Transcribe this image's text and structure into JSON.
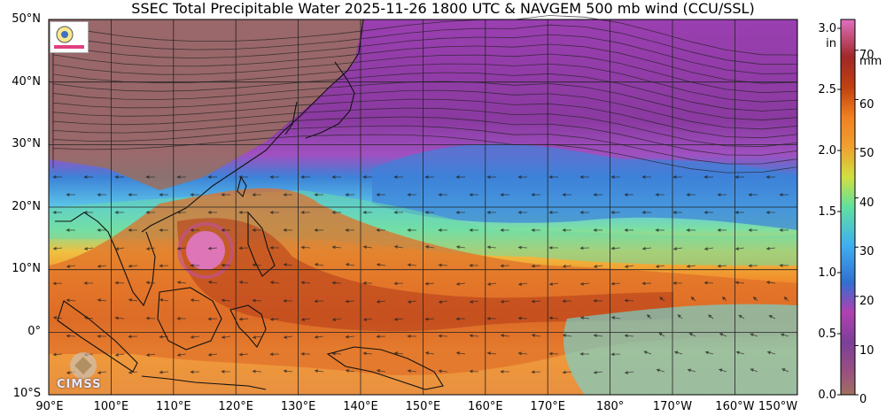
{
  "title": "SSEC Total Precipitable Water  2025-11-26 1800 UTC & NAVGEM 500 mb wind (CCU/SSL)",
  "latitude_labels": [
    "50°N",
    "40°N",
    "30°N",
    "20°N",
    "10°N",
    "0°",
    "10°S"
  ],
  "longitude_labels": [
    "90°E",
    "100°E",
    "110°E",
    "120°E",
    "130°E",
    "140°E",
    "150°E",
    "160°E",
    "170°E",
    "180°",
    "170°W",
    "160°W",
    "150°W"
  ],
  "colorbar": {
    "inch_unit": "in",
    "mm_unit": "mm",
    "inch_ticks": [
      "3.0",
      "2.5",
      "2.0",
      "1.5",
      "1.0",
      "0.5",
      "0.0"
    ],
    "mm_ticks": [
      "70",
      "60",
      "50",
      "40",
      "30",
      "20",
      "10",
      "0"
    ],
    "colors": [
      "#a07060",
      "#7b3f98",
      "#b040b0",
      "#3070d0",
      "#40b0f0",
      "#60e0a0",
      "#f0e040",
      "#f08020",
      "#c04010",
      "#a02020",
      "#e070c0"
    ]
  },
  "logos": {
    "cimss_text": "CIMSS"
  },
  "map_colors": {
    "land_dry": "#9a6f5e",
    "dry_purple": "#8a3aa0",
    "moist_blue": "#3d82d8",
    "mid_green": "#62dca0",
    "wet_orange": "#f08a2a",
    "very_wet": "#c54516",
    "peak_pink": "#e07ad0"
  }
}
